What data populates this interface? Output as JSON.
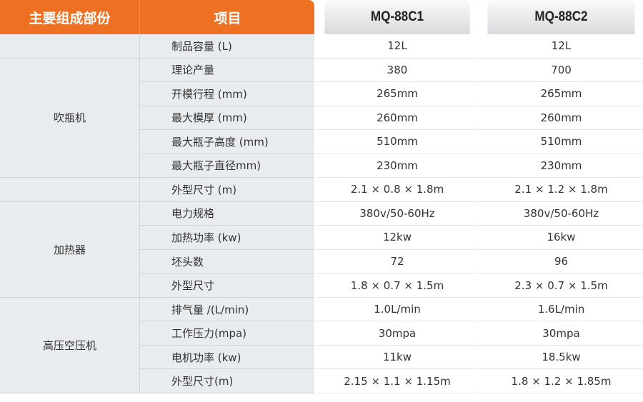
{
  "header": {
    "group": "主要组成部份",
    "item": "项目",
    "model1": "MQ-88C1",
    "model2": "MQ-88C2"
  },
  "colors": {
    "accent": "#ee7023",
    "left_bg": "#e9ecef"
  },
  "groups": [
    {
      "label": "",
      "rows": 1
    },
    {
      "label": "吹瓶机",
      "rows": 5
    },
    {
      "label": "",
      "rows": 1
    },
    {
      "label": "加热器",
      "rows": 4
    },
    {
      "label": "高压空压机",
      "rows": 4
    }
  ],
  "rows": [
    {
      "item": "制品容量 (L)",
      "m1": "12L",
      "m2": "12L"
    },
    {
      "item": "理论产量",
      "m1": "380",
      "m2": "700"
    },
    {
      "item": "开模行程 (mm)",
      "m1": "265mm",
      "m2": "265mm"
    },
    {
      "item": "最大模厚 (mm)",
      "m1": "260mm",
      "m2": "260mm"
    },
    {
      "item": "最大瓶子高度 (mm)",
      "m1": "510mm",
      "m2": "510mm"
    },
    {
      "item": "最大瓶子直径mm)",
      "m1": "230mm",
      "m2": "230mm"
    },
    {
      "item": "外型尺寸 (m)",
      "m1": "2.1 × 0.8 × 1.8m",
      "m2": "2.1 × 1.2 × 1.8m"
    },
    {
      "item": "电力规格",
      "m1": "380v/50-60Hz",
      "m2": "380v/50-60Hz"
    },
    {
      "item": "加热功率 (kw)",
      "m1": "12kw",
      "m2": "16kw"
    },
    {
      "item": "坯头数",
      "m1": "72",
      "m2": "96"
    },
    {
      "item": "外型尺寸",
      "m1": "1.8 × 0.7 × 1.5m",
      "m2": "2.3 × 0.7 × 1.5m"
    },
    {
      "item": "排气量 /(L/min)",
      "m1": "1.0L/min",
      "m2": "1.6L/min"
    },
    {
      "item": "工作压力(mpa)",
      "m1": "30mpa",
      "m2": "30mpa"
    },
    {
      "item": "电机功率 (kw)",
      "m1": "11kw",
      "m2": "18.5kw"
    },
    {
      "item": "外型尺寸(m)",
      "m1": "2.15 × 1.1 × 1.15m",
      "m2": "1.8 × 1.2 × 1.85m"
    }
  ]
}
